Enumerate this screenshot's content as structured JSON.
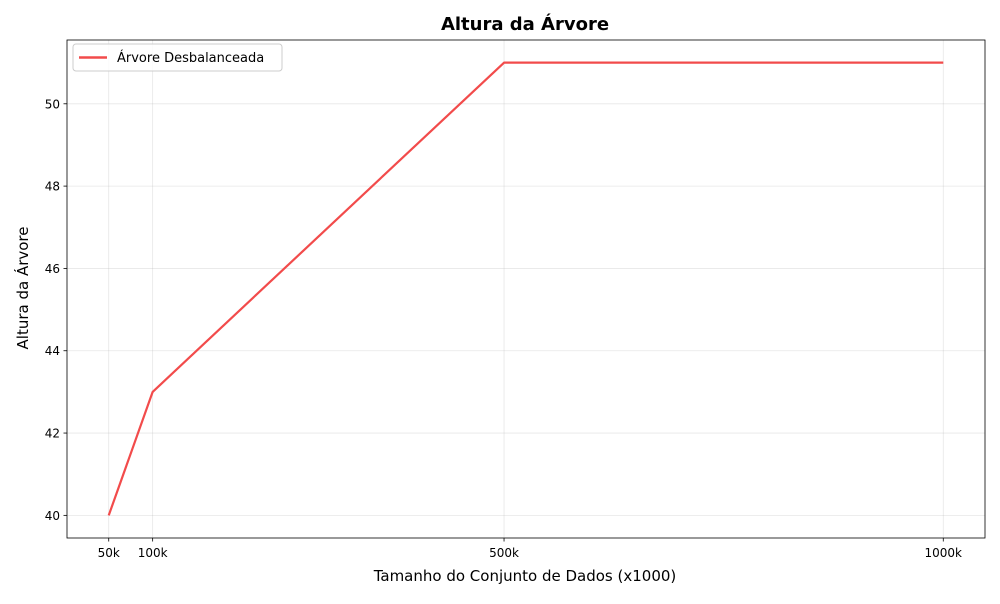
{
  "chart_data": {
    "type": "line",
    "title": "Altura da Árvore",
    "xlabel": "Tamanho do Conjunto de Dados (x1000)",
    "ylabel": "Altura da Árvore",
    "x": [
      50,
      100,
      500,
      1000
    ],
    "x_tick_values": [
      50,
      100,
      500,
      1000
    ],
    "x_tick_labels": [
      "50k",
      "100k",
      "500k",
      "1000k"
    ],
    "y_tick_values": [
      40,
      42,
      44,
      46,
      48,
      50
    ],
    "y_tick_labels": [
      "40",
      "42",
      "44",
      "46",
      "48",
      "50"
    ],
    "xlim": [
      2.5,
      1047.5
    ],
    "ylim": [
      39.45,
      51.55
    ],
    "grid": true,
    "legend_position": "top-left",
    "series": [
      {
        "name": "Árvore Desbalanceada",
        "color": "#f24b4b",
        "values": [
          40,
          43,
          51,
          51
        ]
      }
    ]
  }
}
